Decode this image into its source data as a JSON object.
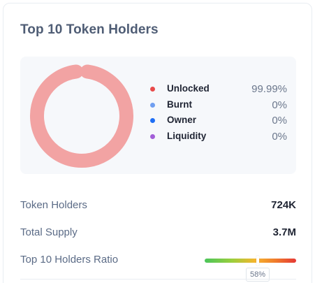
{
  "card": {
    "title": "Top 10 Token Holders"
  },
  "distribution": {
    "items": [
      {
        "label": "Unlocked",
        "value": "99.99%",
        "percent": 99.99,
        "color": "#e84a4a"
      },
      {
        "label": "Burnt",
        "value": "0%",
        "percent": 0,
        "color": "#6f9ef0"
      },
      {
        "label": "Owner",
        "value": "0%",
        "percent": 0,
        "color": "#1e6ef5"
      },
      {
        "label": "Liquidity",
        "value": "0%",
        "percent": 0,
        "color": "#a25ed8"
      }
    ],
    "ring_color": "#f2a3a3"
  },
  "stats": {
    "token_holders": {
      "label": "Token Holders",
      "value": "724K"
    },
    "total_supply": {
      "label": "Total Supply",
      "value": "3.7M"
    },
    "top10_ratio": {
      "label": "Top 10 Holders Ratio",
      "value_label": "58%",
      "fraction": 0.58
    }
  }
}
